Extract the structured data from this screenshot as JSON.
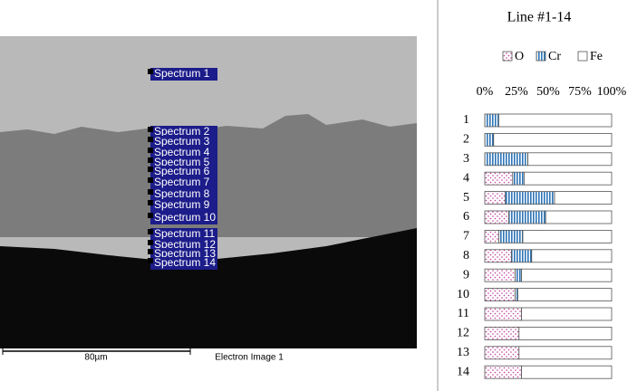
{
  "image": {
    "spectrum_labels": [
      "Spectrum 1",
      "Spectrum 2",
      "Spectrum 3",
      "Spectrum 4",
      "Spectrum 5",
      "Spectrum 6",
      "Spectrum 7",
      "Spectrum 8",
      "Spectrum 9",
      "Spectrum 10",
      "Spectrum 11",
      "Spectrum 12",
      "Spectrum 13",
      "Spectrum 14"
    ],
    "scale_bar": "80µm",
    "caption": "Electron Image 1"
  },
  "chart_data": {
    "type": "stacked_barh",
    "title": "Line #1-14",
    "categories": [
      "1",
      "2",
      "3",
      "4",
      "5",
      "6",
      "7",
      "8",
      "9",
      "10",
      "11",
      "12",
      "13",
      "14"
    ],
    "series": [
      {
        "name": "O",
        "color": "#c0399a",
        "values": [
          0,
          0,
          0,
          22,
          16,
          19,
          11,
          21,
          24,
          24,
          29,
          27,
          27,
          29
        ]
      },
      {
        "name": "Cr",
        "color": "#2e75b6",
        "values": [
          11,
          7,
          34,
          9,
          39,
          29,
          19,
          16,
          5,
          2,
          0,
          0,
          0,
          0
        ]
      },
      {
        "name": "Fe",
        "color": "#ffffff",
        "values": [
          89,
          93,
          66,
          69,
          45,
          52,
          70,
          63,
          71,
          74,
          71,
          73,
          73,
          71
        ]
      }
    ],
    "xlim": [
      0,
      100
    ],
    "xticks": [
      {
        "value": 0,
        "label": "0%"
      },
      {
        "value": 25,
        "label": "25%"
      },
      {
        "value": 50,
        "label": "50%"
      },
      {
        "value": 75,
        "label": "75%"
      },
      {
        "value": 100,
        "label": "100%"
      }
    ],
    "grid": false,
    "legend": "top"
  }
}
